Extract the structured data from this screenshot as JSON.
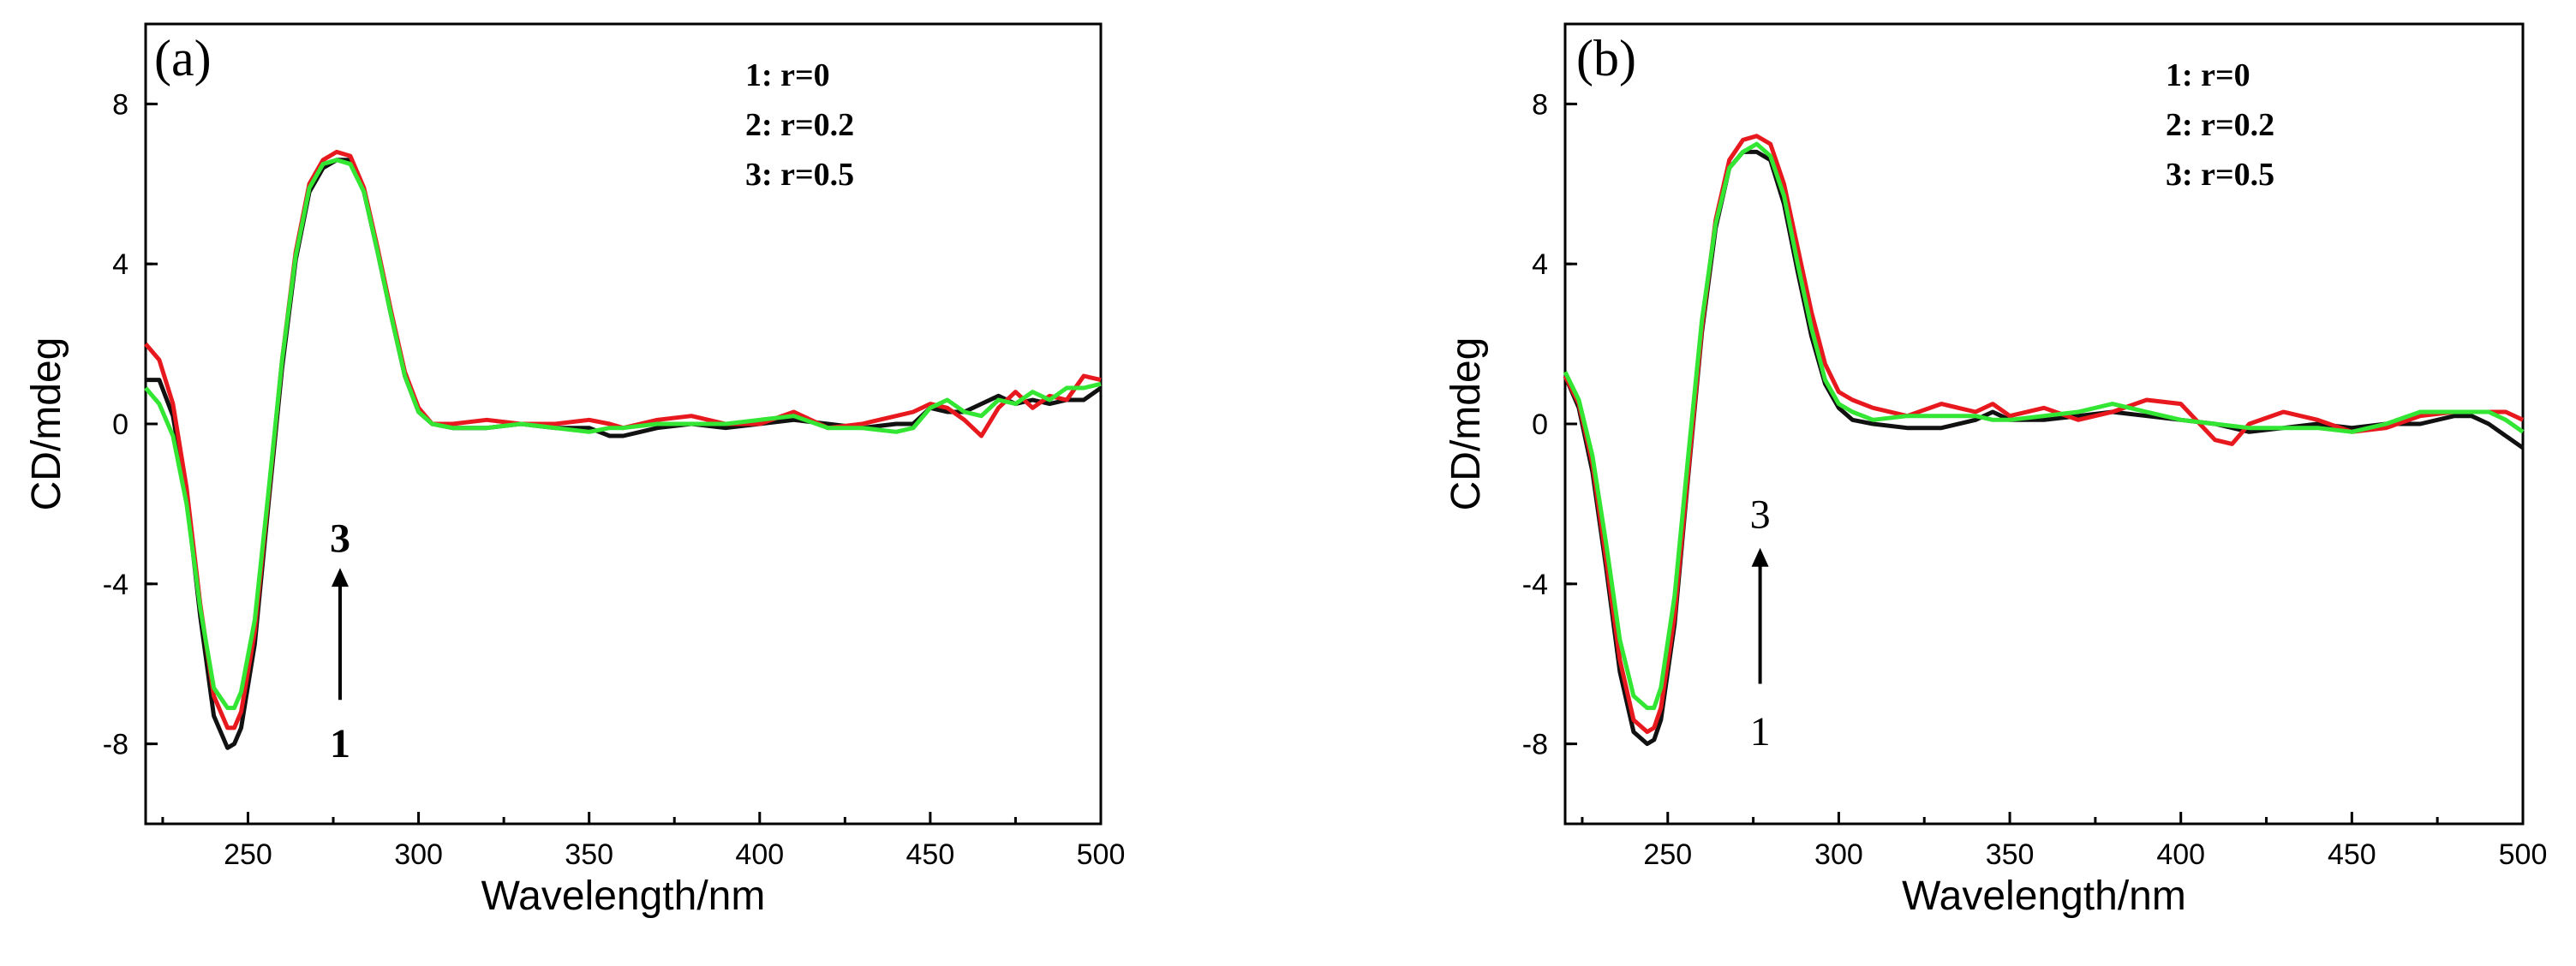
{
  "chart_data": [
    {
      "type": "line",
      "panel_label": "(a)",
      "xlabel": "Wavelength/nm",
      "ylabel": "CD/mdeg",
      "xlim": [
        220,
        500
      ],
      "ylim": [
        -10,
        10
      ],
      "x_ticks": [
        250,
        300,
        350,
        400,
        450,
        500
      ],
      "y_ticks": [
        -8,
        -4,
        0,
        4,
        8
      ],
      "legend": [
        "1: r=0",
        "2: r=0.2",
        "3: r=0.5"
      ],
      "annotation": {
        "top": "3",
        "bottom": "1",
        "x": 277,
        "y_from": -6.9,
        "y_to": -3.6,
        "top_y": -3.2,
        "bottom_y": -7.6
      },
      "series": [
        {
          "name": "1: r=0",
          "color": "#111111",
          "x": [
            220,
            224,
            228,
            232,
            236,
            240,
            244,
            246,
            248,
            252,
            256,
            260,
            264,
            268,
            272,
            276,
            280,
            284,
            288,
            292,
            296,
            300,
            304,
            310,
            320,
            330,
            340,
            350,
            356,
            360,
            370,
            380,
            390,
            400,
            410,
            420,
            430,
            440,
            445,
            450,
            455,
            460,
            465,
            470,
            475,
            480,
            485,
            490,
            495,
            500
          ],
          "y": [
            1.1,
            1.1,
            0.2,
            -1.8,
            -4.8,
            -7.3,
            -8.1,
            -8.0,
            -7.6,
            -5.5,
            -2.0,
            1.4,
            4.1,
            5.8,
            6.4,
            6.6,
            6.6,
            5.8,
            4.3,
            2.7,
            1.2,
            0.3,
            0.0,
            -0.1,
            -0.1,
            0.0,
            -0.1,
            -0.1,
            -0.3,
            -0.3,
            -0.1,
            0.0,
            -0.1,
            0.0,
            0.1,
            0.0,
            -0.1,
            0.0,
            0.0,
            0.4,
            0.3,
            0.3,
            0.5,
            0.7,
            0.5,
            0.6,
            0.5,
            0.6,
            0.6,
            0.9
          ]
        },
        {
          "name": "2: r=0.2",
          "color": "#e8191e",
          "x": [
            220,
            224,
            228,
            232,
            236,
            240,
            244,
            246,
            248,
            252,
            256,
            260,
            264,
            268,
            272,
            276,
            280,
            284,
            288,
            292,
            296,
            300,
            304,
            310,
            320,
            330,
            340,
            350,
            356,
            360,
            370,
            380,
            390,
            400,
            410,
            420,
            430,
            440,
            445,
            450,
            455,
            460,
            465,
            470,
            475,
            480,
            485,
            490,
            495,
            500
          ],
          "y": [
            2.0,
            1.6,
            0.5,
            -1.6,
            -4.5,
            -6.8,
            -7.6,
            -7.6,
            -7.2,
            -5.2,
            -1.8,
            1.6,
            4.3,
            6.0,
            6.6,
            6.8,
            6.7,
            5.9,
            4.4,
            2.8,
            1.3,
            0.4,
            0.0,
            0.0,
            0.1,
            0.0,
            0.0,
            0.1,
            0.0,
            -0.1,
            0.1,
            0.2,
            0.0,
            0.0,
            0.3,
            -0.1,
            0.0,
            0.2,
            0.3,
            0.5,
            0.4,
            0.1,
            -0.3,
            0.4,
            0.8,
            0.4,
            0.7,
            0.6,
            1.2,
            1.1
          ]
        },
        {
          "name": "3: r=0.5",
          "color": "#33e633",
          "x": [
            220,
            224,
            228,
            232,
            236,
            240,
            244,
            246,
            248,
            252,
            256,
            260,
            264,
            268,
            272,
            276,
            280,
            284,
            288,
            292,
            296,
            300,
            304,
            310,
            320,
            330,
            340,
            350,
            356,
            360,
            370,
            380,
            390,
            400,
            410,
            420,
            430,
            440,
            445,
            450,
            455,
            460,
            465,
            470,
            475,
            480,
            485,
            490,
            495,
            500
          ],
          "y": [
            0.9,
            0.5,
            -0.3,
            -2.0,
            -4.6,
            -6.6,
            -7.1,
            -7.1,
            -6.7,
            -4.9,
            -1.7,
            1.6,
            4.2,
            5.9,
            6.5,
            6.6,
            6.5,
            5.8,
            4.3,
            2.7,
            1.2,
            0.3,
            0.0,
            -0.1,
            -0.1,
            0.0,
            -0.1,
            -0.2,
            -0.1,
            -0.1,
            0.0,
            0.0,
            0.0,
            0.1,
            0.2,
            -0.1,
            -0.1,
            -0.2,
            -0.1,
            0.4,
            0.6,
            0.3,
            0.2,
            0.6,
            0.5,
            0.8,
            0.6,
            0.9,
            0.9,
            1.0
          ]
        }
      ]
    },
    {
      "type": "line",
      "panel_label": "(b)",
      "xlabel": "Wavelength/nm",
      "ylabel": "CD/mdeg",
      "xlim": [
        220,
        500
      ],
      "ylim": [
        -10,
        10
      ],
      "x_ticks": [
        250,
        300,
        350,
        400,
        450,
        500
      ],
      "y_ticks": [
        -8,
        -4,
        0,
        4,
        8
      ],
      "legend": [
        "1: r=0",
        "2: r=0.2",
        "3: r=0.5"
      ],
      "annotation": {
        "top": "3",
        "bottom": "1",
        "x": 277,
        "y_from": -6.5,
        "y_to": -3.1,
        "top_y": -2.6,
        "bottom_y": -7.3
      },
      "series": [
        {
          "name": "1: r=0",
          "color": "#111111",
          "x": [
            220,
            224,
            228,
            232,
            236,
            240,
            244,
            246,
            248,
            252,
            256,
            260,
            264,
            268,
            272,
            276,
            280,
            284,
            288,
            292,
            296,
            300,
            304,
            310,
            320,
            330,
            340,
            345,
            350,
            360,
            370,
            380,
            390,
            400,
            410,
            420,
            430,
            440,
            450,
            460,
            470,
            480,
            485,
            490,
            495,
            500
          ],
          "y": [
            1.2,
            0.4,
            -1.2,
            -3.6,
            -6.2,
            -7.7,
            -8.0,
            -7.9,
            -7.4,
            -5.0,
            -1.3,
            2.3,
            4.9,
            6.4,
            6.8,
            6.8,
            6.6,
            5.5,
            3.8,
            2.2,
            1.0,
            0.4,
            0.1,
            0.0,
            -0.1,
            -0.1,
            0.1,
            0.3,
            0.1,
            0.1,
            0.2,
            0.3,
            0.2,
            0.1,
            0.0,
            -0.2,
            -0.1,
            0.0,
            -0.1,
            0.0,
            0.0,
            0.2,
            0.2,
            0.0,
            -0.3,
            -0.6
          ]
        },
        {
          "name": "2: r=0.2",
          "color": "#e8191e",
          "x": [
            220,
            224,
            228,
            232,
            236,
            240,
            244,
            246,
            248,
            252,
            256,
            260,
            264,
            268,
            272,
            276,
            280,
            284,
            288,
            292,
            296,
            300,
            304,
            310,
            320,
            330,
            340,
            345,
            350,
            360,
            370,
            380,
            390,
            400,
            410,
            415,
            420,
            430,
            440,
            450,
            460,
            470,
            480,
            490,
            495,
            500
          ],
          "y": [
            1.2,
            0.5,
            -1.0,
            -3.4,
            -5.9,
            -7.4,
            -7.7,
            -7.6,
            -7.1,
            -4.8,
            -1.2,
            2.4,
            5.1,
            6.6,
            7.1,
            7.2,
            7.0,
            6.0,
            4.4,
            2.8,
            1.5,
            0.8,
            0.6,
            0.4,
            0.2,
            0.5,
            0.3,
            0.5,
            0.2,
            0.4,
            0.1,
            0.3,
            0.6,
            0.5,
            -0.4,
            -0.5,
            0.0,
            0.3,
            0.1,
            -0.2,
            -0.1,
            0.2,
            0.3,
            0.3,
            0.3,
            0.1
          ]
        },
        {
          "name": "3: r=0.5",
          "color": "#33e633",
          "x": [
            220,
            224,
            228,
            232,
            236,
            240,
            244,
            246,
            248,
            252,
            256,
            260,
            264,
            268,
            272,
            276,
            280,
            284,
            288,
            292,
            296,
            300,
            304,
            310,
            320,
            330,
            340,
            345,
            350,
            360,
            370,
            380,
            390,
            400,
            410,
            420,
            430,
            440,
            450,
            460,
            470,
            480,
            490,
            495,
            500
          ],
          "y": [
            1.3,
            0.6,
            -0.8,
            -3.0,
            -5.4,
            -6.8,
            -7.1,
            -7.1,
            -6.6,
            -4.3,
            -0.8,
            2.6,
            5.0,
            6.4,
            6.8,
            7.0,
            6.7,
            5.7,
            4.0,
            2.4,
            1.1,
            0.5,
            0.3,
            0.1,
            0.2,
            0.2,
            0.2,
            0.1,
            0.1,
            0.2,
            0.3,
            0.5,
            0.3,
            0.1,
            0.0,
            -0.1,
            -0.1,
            -0.1,
            -0.2,
            0.0,
            0.3,
            0.3,
            0.3,
            0.1,
            -0.2
          ]
        }
      ]
    }
  ]
}
